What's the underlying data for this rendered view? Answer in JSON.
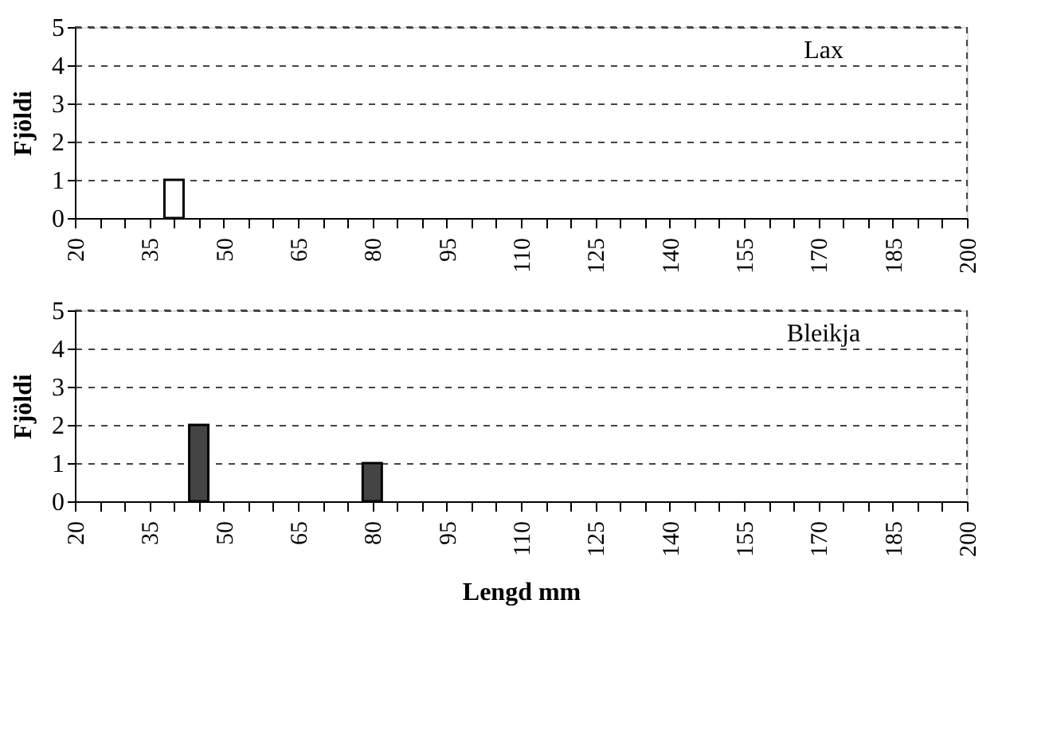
{
  "chart_data": [
    {
      "type": "bar",
      "ylabel": "Fjöldi",
      "x": [
        20,
        25,
        30,
        35,
        40,
        45,
        50,
        55,
        60,
        65,
        70,
        75,
        80,
        85,
        90,
        95,
        100,
        105,
        110,
        115,
        120,
        125,
        130,
        135,
        140,
        145,
        150,
        155,
        160,
        165,
        170,
        175,
        180,
        185,
        190,
        195,
        200
      ],
      "series": [
        {
          "name": "Lax",
          "color": "#ffffff",
          "values": [
            0,
            0,
            0,
            0,
            1,
            0,
            0,
            0,
            0,
            0,
            0,
            0,
            0,
            0,
            0,
            0,
            0,
            0,
            0,
            0,
            0,
            0,
            0,
            0,
            0,
            0,
            0,
            0,
            0,
            0,
            0,
            0,
            0,
            0,
            0,
            0,
            0
          ]
        }
      ],
      "xlim": [
        20,
        200
      ],
      "xticks": [
        20,
        {
          "value": 25,
          "label": null
        },
        {
          "value": 30,
          "label": null
        },
        35,
        {
          "value": 40,
          "label": null
        },
        {
          "value": 45,
          "label": null
        },
        50,
        {
          "value": 55,
          "label": null
        },
        {
          "value": 60,
          "label": null
        },
        65,
        {
          "value": 70,
          "label": null
        },
        {
          "value": 75,
          "label": null
        },
        80,
        {
          "value": 85,
          "label": null
        },
        {
          "value": 90,
          "label": null
        },
        95,
        {
          "value": 100,
          "label": null
        },
        {
          "value": 105,
          "label": null
        },
        110,
        {
          "value": 115,
          "label": null
        },
        {
          "value": 120,
          "label": null
        },
        125,
        {
          "value": 130,
          "label": null
        },
        {
          "value": 135,
          "label": null
        },
        140,
        {
          "value": 145,
          "label": null
        },
        {
          "value": 150,
          "label": null
        },
        155,
        {
          "value": 160,
          "label": null
        },
        {
          "value": 165,
          "label": null
        },
        170,
        {
          "value": 175,
          "label": null
        },
        {
          "value": 180,
          "label": null
        },
        185,
        {
          "value": 190,
          "label": null
        },
        {
          "value": 195,
          "label": null
        },
        200
      ],
      "ylim": [
        0,
        5
      ],
      "yticks": [
        0,
        1,
        2,
        3,
        4,
        5
      ],
      "grid": "y"
    },
    {
      "type": "bar",
      "ylabel": "Fjöldi",
      "xlabel": "Lengd mm",
      "x": [
        20,
        25,
        30,
        35,
        40,
        45,
        50,
        55,
        60,
        65,
        70,
        75,
        80,
        85,
        90,
        95,
        100,
        105,
        110,
        115,
        120,
        125,
        130,
        135,
        140,
        145,
        150,
        155,
        160,
        165,
        170,
        175,
        180,
        185,
        190,
        195,
        200
      ],
      "series": [
        {
          "name": "Bleikja",
          "color": "#444444",
          "values": [
            0,
            0,
            0,
            0,
            0,
            2,
            0,
            0,
            0,
            0,
            0,
            0,
            1,
            0,
            0,
            0,
            0,
            0,
            0,
            0,
            0,
            0,
            0,
            0,
            0,
            0,
            0,
            0,
            0,
            0,
            0,
            0,
            0,
            0,
            0,
            0,
            0
          ]
        }
      ],
      "xlim": [
        20,
        200
      ],
      "xticks": [
        20,
        {
          "value": 25,
          "label": null
        },
        {
          "value": 30,
          "label": null
        },
        35,
        {
          "value": 40,
          "label": null
        },
        {
          "value": 45,
          "label": null
        },
        50,
        {
          "value": 55,
          "label": null
        },
        {
          "value": 60,
          "label": null
        },
        65,
        {
          "value": 70,
          "label": null
        },
        {
          "value": 75,
          "label": null
        },
        80,
        {
          "value": 85,
          "label": null
        },
        {
          "value": 90,
          "label": null
        },
        95,
        {
          "value": 100,
          "label": null
        },
        {
          "value": 105,
          "label": null
        },
        110,
        {
          "value": 115,
          "label": null
        },
        {
          "value": 120,
          "label": null
        },
        125,
        {
          "value": 130,
          "label": null
        },
        {
          "value": 135,
          "label": null
        },
        140,
        {
          "value": 145,
          "label": null
        },
        {
          "value": 150,
          "label": null
        },
        155,
        {
          "value": 160,
          "label": null
        },
        {
          "value": 165,
          "label": null
        },
        170,
        {
          "value": 175,
          "label": null
        },
        {
          "value": 180,
          "label": null
        },
        185,
        {
          "value": 190,
          "label": null
        },
        {
          "value": 195,
          "label": null
        },
        200
      ],
      "ylim": [
        0,
        5
      ],
      "yticks": [
        0,
        1,
        2,
        3,
        4,
        5
      ],
      "grid": "y"
    }
  ]
}
